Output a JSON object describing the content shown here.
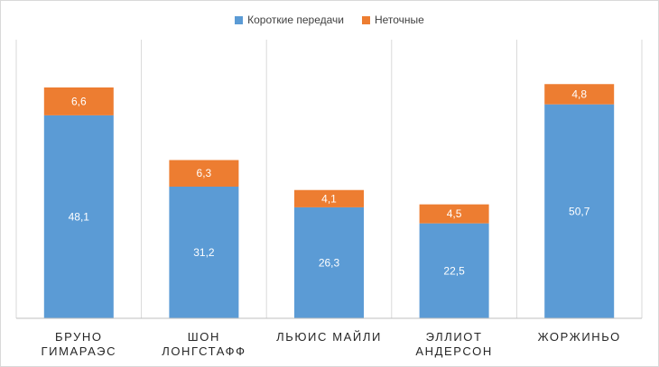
{
  "colors": {
    "short": "#5b9bd5",
    "inaccurate": "#ed7d31",
    "gridline": "#d9d9d9",
    "axis": "#bfbfbf"
  },
  "legend": {
    "short_label": "Короткие передачи",
    "inaccurate_label": "Неточные"
  },
  "chart_data": {
    "type": "bar",
    "stacked": true,
    "categories": [
      [
        "БРУНО",
        "ГИМАРАЭС"
      ],
      [
        "ШОН",
        "ЛОНГСТАФФ"
      ],
      [
        "ЛЬЮИС МАЙЛИ"
      ],
      [
        "ЭЛЛИОТ",
        "АНДЕРСОН"
      ],
      [
        "ЖОРЖИНЬО"
      ]
    ],
    "series": [
      {
        "name": "Короткие передачи",
        "values": [
          48.1,
          31.2,
          26.3,
          22.5,
          50.7
        ],
        "labels": [
          "48,1",
          "31,2",
          "26,3",
          "22,5",
          "50,7"
        ]
      },
      {
        "name": "Неточные",
        "values": [
          6.6,
          6.3,
          4.1,
          4.5,
          4.8
        ],
        "labels": [
          "6,6",
          "6,3",
          "4,1",
          "4,5",
          "4,8"
        ]
      }
    ],
    "ylim": [
      0,
      60
    ],
    "grid": "vertical-separators",
    "legend_position": "top"
  }
}
